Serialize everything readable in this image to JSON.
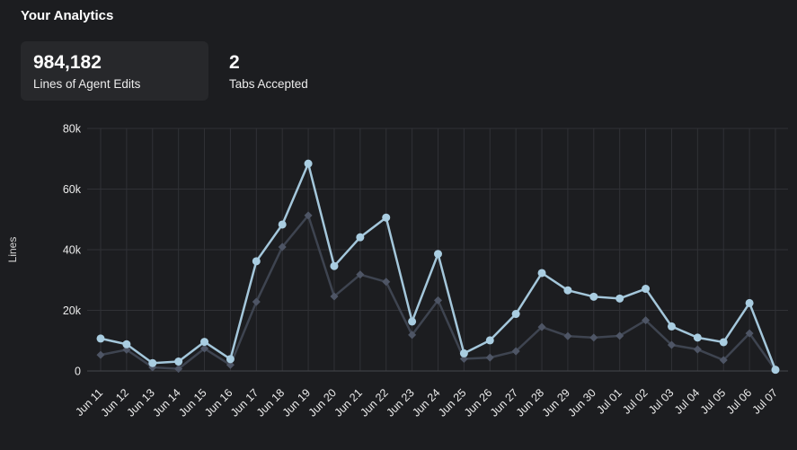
{
  "page": {
    "title": "Your Analytics"
  },
  "stats": [
    {
      "value": "984,182",
      "label": "Lines of Agent Edits"
    },
    {
      "value": "2",
      "label": "Tabs Accepted"
    }
  ],
  "chart_data": {
    "type": "line",
    "title": "",
    "xlabel": "",
    "ylabel": "Lines",
    "ylim": [
      0,
      80000
    ],
    "grid": true,
    "legend_position": "none",
    "yticks": [
      {
        "value": 0,
        "label": "0"
      },
      {
        "value": 20000,
        "label": "20k"
      },
      {
        "value": 40000,
        "label": "40k"
      },
      {
        "value": 60000,
        "label": "60k"
      },
      {
        "value": 80000,
        "label": "80k"
      }
    ],
    "categories": [
      "Jun 11",
      "Jun 12",
      "Jun 13",
      "Jun 14",
      "Jun 15",
      "Jun 16",
      "Jun 17",
      "Jun 18",
      "Jun 19",
      "Jun 20",
      "Jun 21",
      "Jun 22",
      "Jun 23",
      "Jun 24",
      "Jun 25",
      "Jun 26",
      "Jun 27",
      "Jun 28",
      "Jun 29",
      "Jun 30",
      "Jul 01",
      "Jul 02",
      "Jul 03",
      "Jul 04",
      "Jul 05",
      "Jul 06",
      "Jul 07"
    ],
    "series": [
      {
        "name": "series-1",
        "color": "#a4c7db",
        "marker_color": "#a9cde1",
        "marker": "circle",
        "values": [
          10700,
          8800,
          2600,
          3100,
          9600,
          3900,
          36200,
          48300,
          68400,
          34600,
          44100,
          50600,
          16300,
          38600,
          5800,
          10100,
          18800,
          32300,
          26600,
          24500,
          23900,
          27100,
          14700,
          11000,
          9500,
          22400,
          400
        ]
      },
      {
        "name": "series-2",
        "color": "#3e4450",
        "marker_color": "#4e5565",
        "marker": "diamond",
        "values": [
          5300,
          7000,
          1200,
          700,
          7400,
          2000,
          22800,
          40900,
          51300,
          24600,
          31800,
          29400,
          11900,
          23300,
          4000,
          4400,
          6500,
          14500,
          11500,
          11000,
          11600,
          16700,
          8600,
          7100,
          3600,
          12400,
          300
        ]
      }
    ]
  },
  "colors": {
    "background": "#1c1d20",
    "card_background": "#27282b",
    "gridline": "#303136",
    "axis_line": "#45464b",
    "tick_text": "#ececec",
    "primary_series": "#a4c7db",
    "secondary_series": "#3e4450"
  }
}
